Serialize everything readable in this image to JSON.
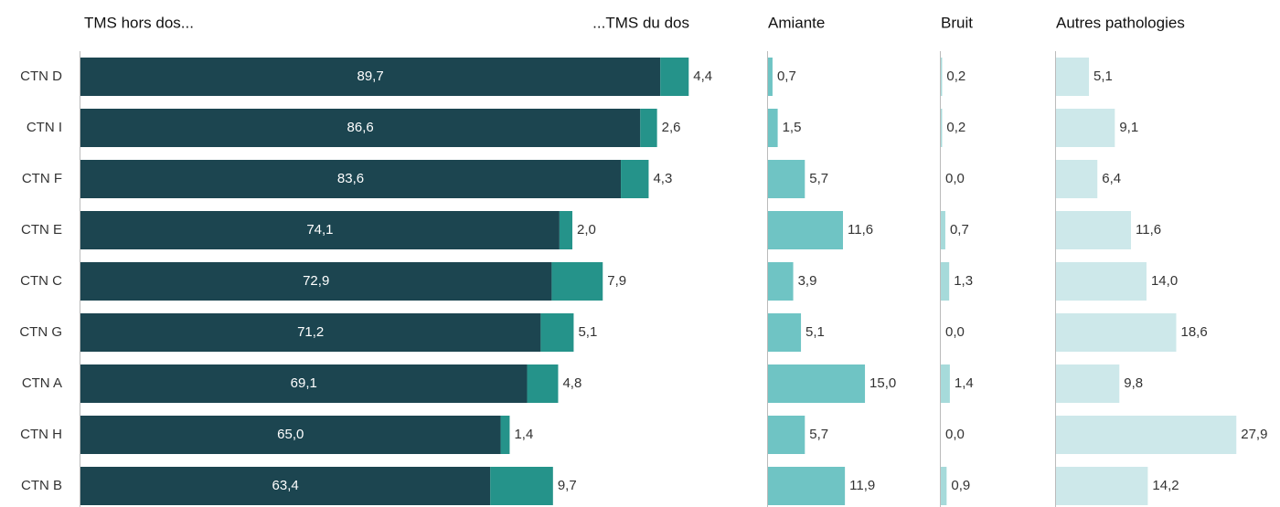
{
  "chart_data": [
    {
      "type": "bar",
      "orientation": "horizontal",
      "stacked": true,
      "categories": [
        "CTN D",
        "CTN I",
        "CTN F",
        "CTN E",
        "CTN C",
        "CTN G",
        "CTN A",
        "CTN H",
        "CTN B"
      ],
      "series": [
        {
          "name": "TMS hors dos...",
          "color": "#1c4550",
          "values": [
            89.7,
            86.6,
            83.6,
            74.1,
            72.9,
            71.2,
            69.1,
            65.0,
            63.4
          ],
          "value_labels": [
            "89,7",
            "86,6",
            "83,6",
            "74,1",
            "72,9",
            "71,2",
            "69,1",
            "65,0",
            "63,4"
          ]
        },
        {
          "name": "...TMS du dos",
          "color": "#25938a",
          "values": [
            4.4,
            2.6,
            4.3,
            2.0,
            7.9,
            5.1,
            4.8,
            1.4,
            9.7
          ],
          "value_labels": [
            "4,4",
            "2,6",
            "4,3",
            "2,0",
            "7,9",
            "5,1",
            "4,8",
            "1,4",
            "9,7"
          ]
        }
      ]
    },
    {
      "type": "bar",
      "orientation": "horizontal",
      "title": "Amiante",
      "color": "#6fc4c4",
      "values": [
        0.7,
        1.5,
        5.7,
        11.6,
        3.9,
        5.1,
        15.0,
        5.7,
        11.9
      ],
      "value_labels": [
        "0,7",
        "1,5",
        "5,7",
        "11,6",
        "3,9",
        "5,1",
        "15,0",
        "5,7",
        "11,9"
      ]
    },
    {
      "type": "bar",
      "orientation": "horizontal",
      "title": "Bruit",
      "color": "#a6dada",
      "values": [
        0.2,
        0.2,
        0.0,
        0.7,
        1.3,
        0.0,
        1.4,
        0.0,
        0.9
      ],
      "value_labels": [
        "0,2",
        "0,2",
        "0,0",
        "0,7",
        "1,3",
        "0,0",
        "1,4",
        "0,0",
        "0,9"
      ]
    },
    {
      "type": "bar",
      "orientation": "horizontal",
      "title": "Autres pathologies",
      "color": "#cde8ea",
      "values": [
        5.1,
        9.1,
        6.4,
        11.6,
        14.0,
        18.6,
        9.8,
        27.9,
        14.2
      ],
      "value_labels": [
        "5,1",
        "9,1",
        "6,4",
        "11,6",
        "14,0",
        "18,6",
        "9,8",
        "27,9",
        "14,2"
      ]
    }
  ]
}
